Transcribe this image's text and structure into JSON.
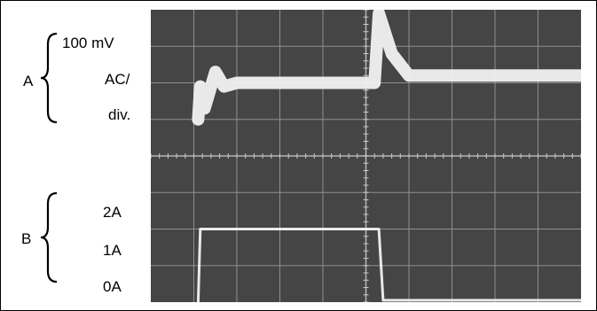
{
  "channel_a": {
    "letter": "A",
    "scale_line1": "100 mV",
    "scale_line2": "AC/",
    "scale_line3": "div."
  },
  "channel_b": {
    "letter": "B",
    "tick_labels": [
      "2A",
      "1A",
      "0A"
    ]
  },
  "colors": {
    "screen": "#454545",
    "grid": "#8f8f8f",
    "trace": "#f2f2f2",
    "text": "#000000"
  },
  "chart_data": {
    "type": "line",
    "title": "",
    "xlabel": "",
    "ylabel": "",
    "grid": true,
    "divisions": {
      "x": 10,
      "y": 8
    },
    "series": [
      {
        "channel": "A",
        "unit_label": "100 mV AC/div.",
        "x": [
          1.1,
          1.15,
          1.25,
          1.5,
          1.7,
          2.0,
          3.0,
          4.0,
          5.2,
          5.3,
          5.6,
          6.0,
          7.0,
          8.0,
          9.0,
          10.0
        ],
        "y": [
          5.0,
          5.9,
          5.3,
          6.3,
          5.9,
          6.0,
          6.0,
          6.0,
          6.0,
          7.9,
          6.8,
          6.2,
          6.2,
          6.2,
          6.2,
          6.2
        ]
      },
      {
        "channel": "B",
        "unit_label": "A",
        "x": [
          1.1,
          1.15,
          2.0,
          3.0,
          4.0,
          5.3,
          5.4,
          6.0,
          7.0,
          8.0,
          9.0,
          10.0
        ],
        "y": [
          0,
          2.0,
          2.0,
          2.0,
          2.0,
          2.0,
          0.05,
          0.05,
          0.05,
          0.05,
          0.05,
          0.05
        ]
      }
    ]
  }
}
